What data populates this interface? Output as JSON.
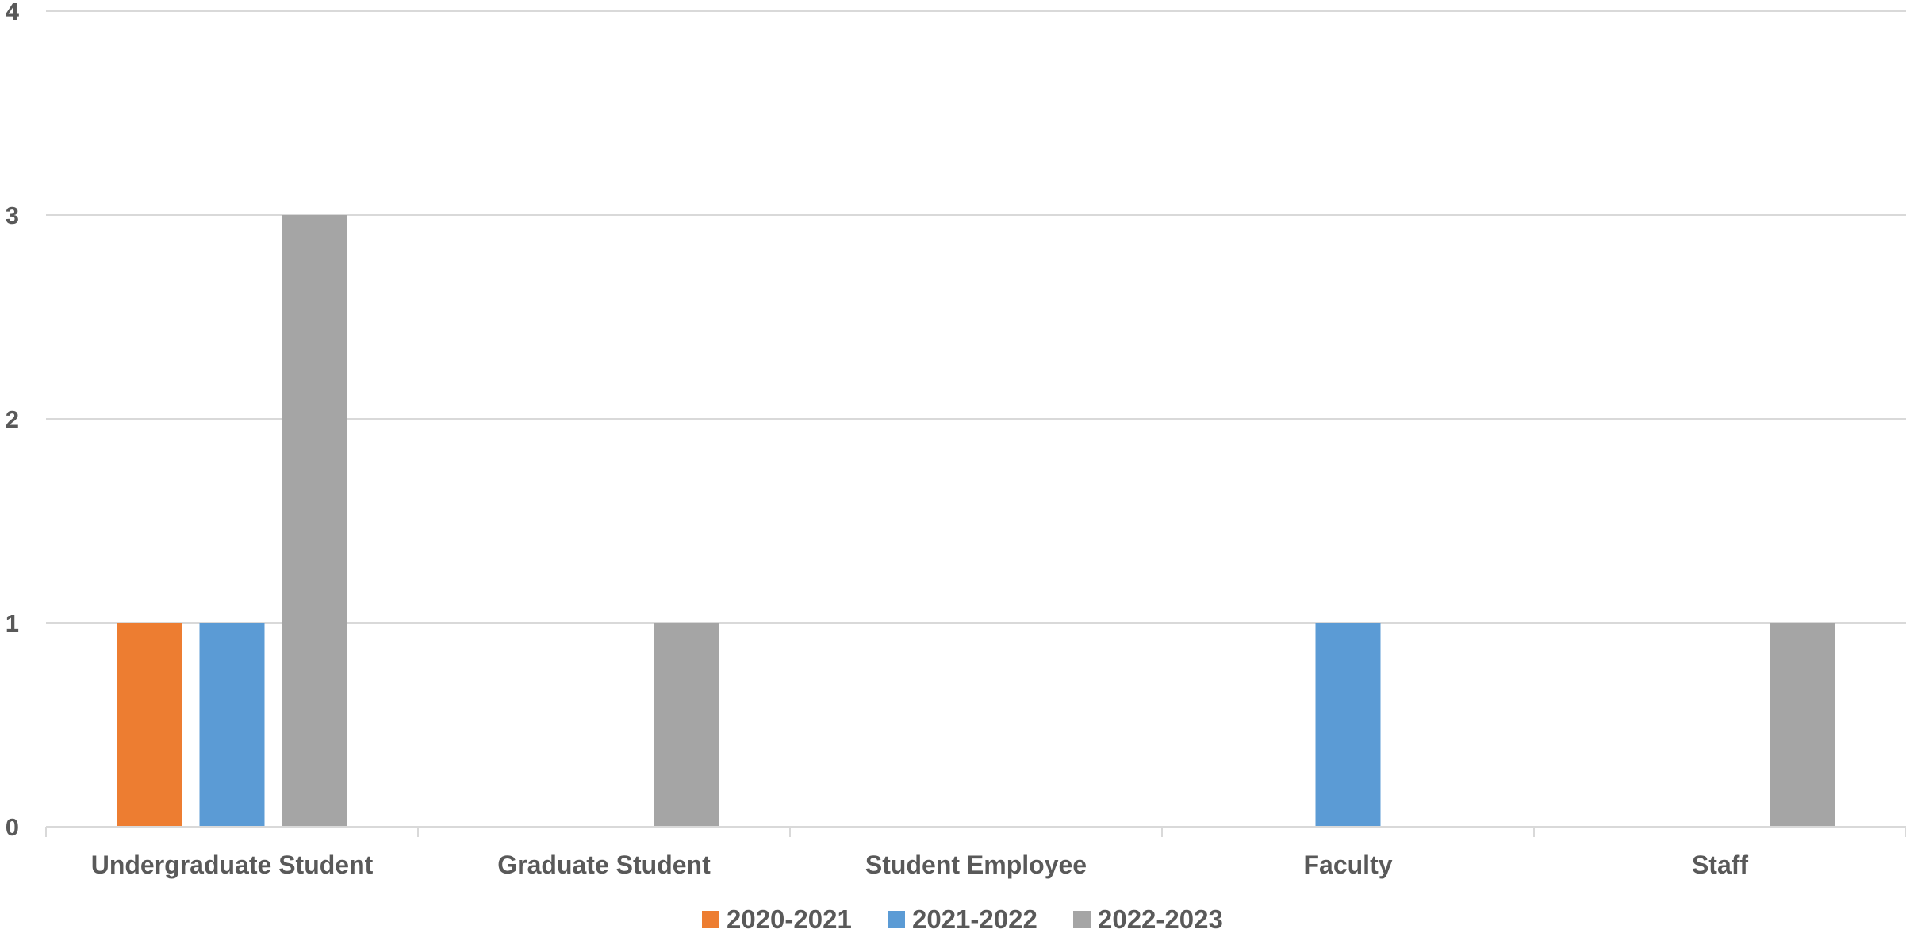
{
  "chart_data": {
    "type": "bar",
    "title": "",
    "xlabel": "",
    "ylabel": "",
    "categories": [
      "Undergraduate Student",
      "Graduate Student",
      "Student Employee",
      "Faculty",
      "Staff"
    ],
    "series": [
      {
        "name": "2020-2021",
        "color": "#ED7D31",
        "values": [
          1,
          0,
          0,
          0,
          0
        ]
      },
      {
        "name": "2021-2022",
        "color": "#5B9BD5",
        "values": [
          1,
          0,
          0,
          1,
          0
        ]
      },
      {
        "name": "2022-2023",
        "color": "#A5A5A5",
        "values": [
          3,
          1,
          0,
          0,
          1
        ]
      }
    ],
    "ylim": [
      0,
      4
    ],
    "yticks": [
      "0",
      "1",
      "2",
      "3",
      "4"
    ],
    "grid": true,
    "legend_position": "bottom"
  }
}
